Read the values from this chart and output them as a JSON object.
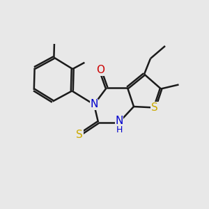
{
  "bg_color": "#e8e8e8",
  "bond_color": "#1a1a1a",
  "bond_width": 1.8,
  "atom_colors": {
    "N": "#0000cc",
    "O": "#cc0000",
    "S": "#ccaa00",
    "C": "#1a1a1a",
    "H": "#0000cc"
  },
  "font_size": 10,
  "fig_size": [
    3.0,
    3.0
  ],
  "dpi": 100
}
